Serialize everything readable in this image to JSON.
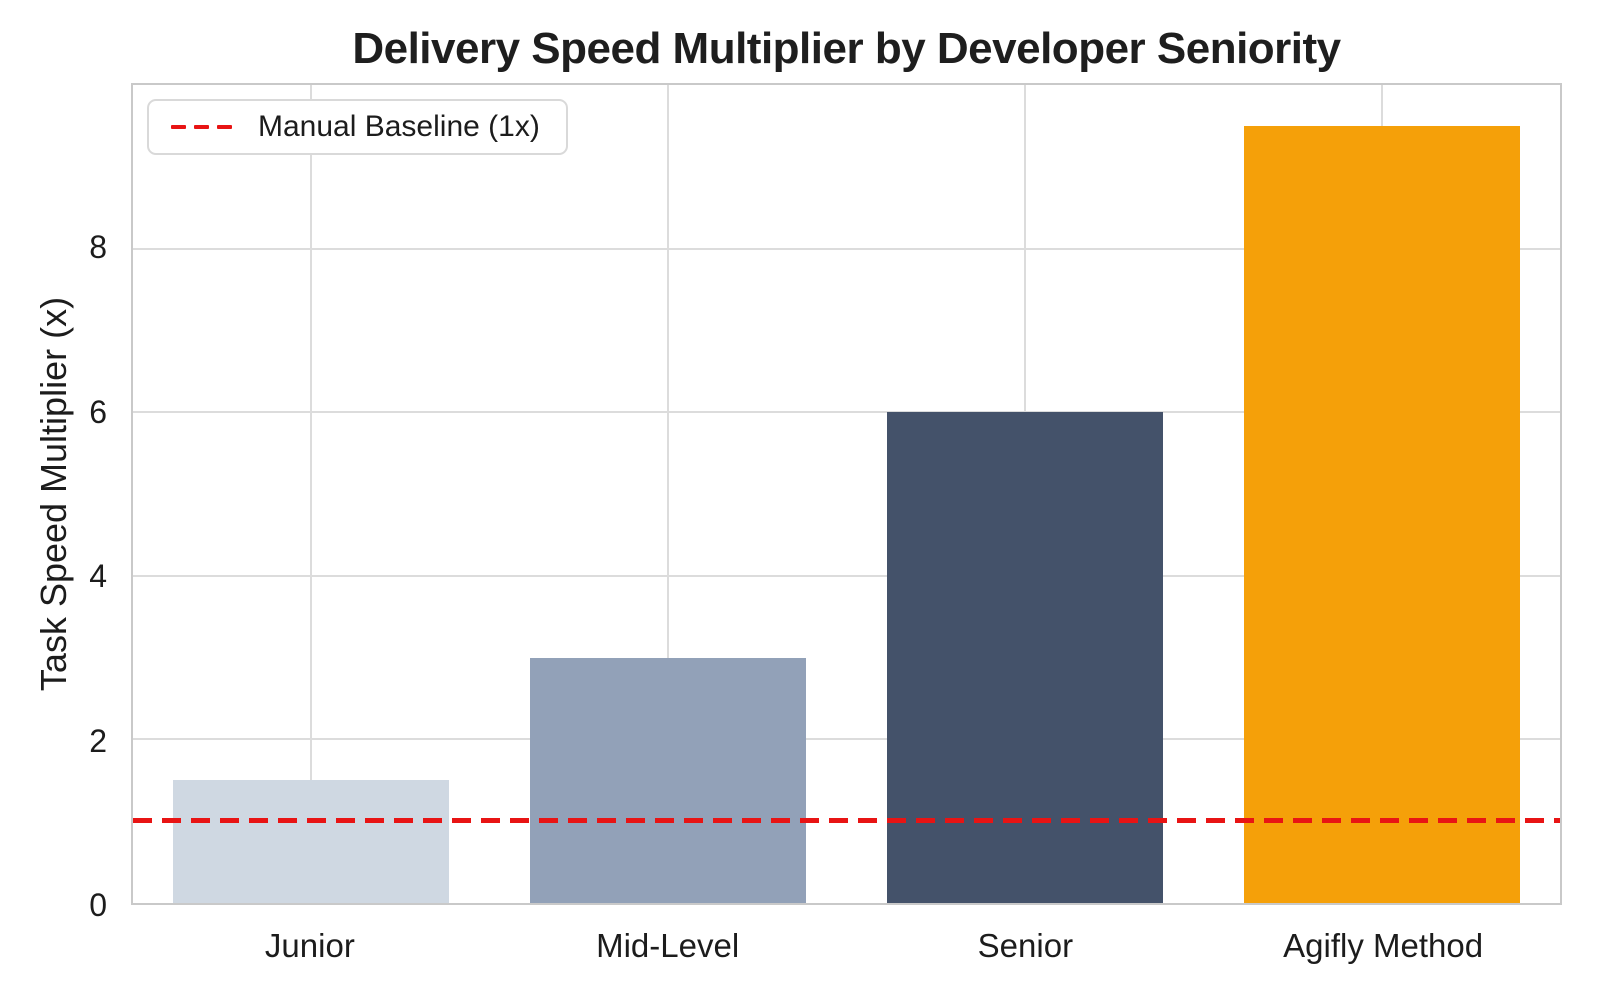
{
  "chart_data": {
    "type": "bar",
    "title": "Delivery Speed Multiplier by Developer Seniority",
    "xlabel": "",
    "ylabel": "Task Speed Multiplier (x)",
    "categories": [
      "Junior",
      "Mid-Level",
      "Senior",
      "Agifly Method"
    ],
    "values": [
      1.5,
      3.0,
      6.0,
      9.5
    ],
    "bar_colors": [
      "#cfd8e2",
      "#92a1b8",
      "#44526a",
      "#f5a009"
    ],
    "ylim": [
      0,
      10
    ],
    "yticks": [
      0,
      2,
      4,
      6,
      8
    ],
    "grid": "both",
    "baseline": {
      "value": 1,
      "style": "dashed",
      "color": "#e81414"
    },
    "legend": {
      "position": "upper left",
      "entries": [
        {
          "label": "Manual Baseline (1x)",
          "color": "#e81414",
          "line_style": "dashed"
        }
      ]
    }
  },
  "colors": {
    "background": "#ffffff",
    "grid": "#dcdcdc",
    "spine": "#c9c9c9",
    "title_text": "#1e1e1e",
    "tick_text": "#1c1c1c",
    "baseline_red": "#e81414"
  }
}
